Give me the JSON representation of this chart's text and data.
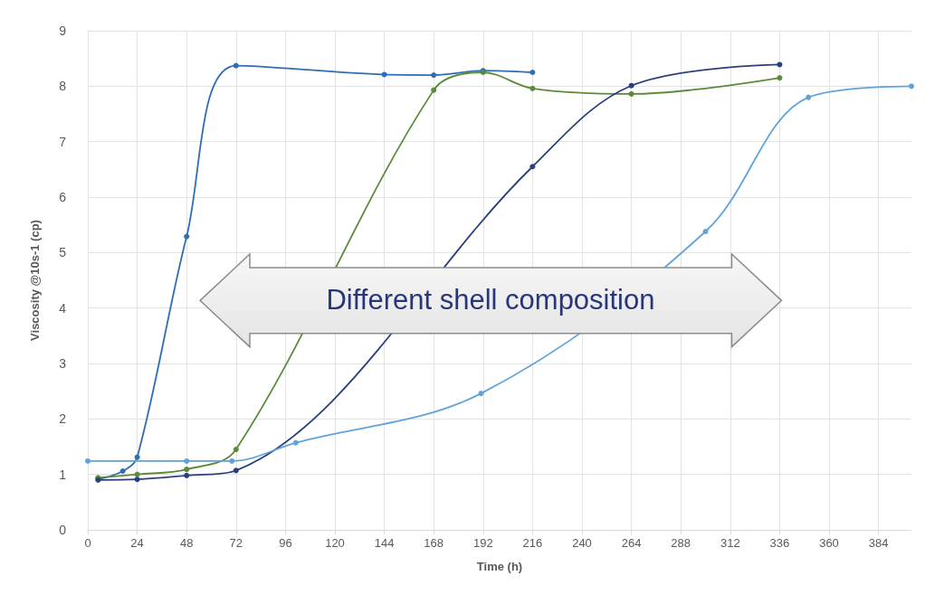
{
  "chart_data": {
    "type": "line",
    "xlabel": "Time (h)",
    "ylabel": "Viscosity @10s-1 (cp)",
    "annotations": [
      "Different shell composition"
    ],
    "xlim": [
      0,
      400
    ],
    "xticks": [
      0,
      24,
      48,
      72,
      96,
      120,
      144,
      168,
      192,
      216,
      240,
      264,
      288,
      312,
      336,
      360,
      384
    ],
    "ylim": [
      0,
      9
    ],
    "yticks": [
      0,
      1,
      2,
      3,
      4,
      5,
      6,
      7,
      8,
      9
    ],
    "grid": true,
    "marker": "circle",
    "line_style": "solid",
    "series": [
      {
        "color": "#2f6db5",
        "x": [
          5,
          17,
          24,
          48,
          72,
          144,
          168,
          192,
          216
        ],
        "values": [
          0.91,
          1.06,
          1.31,
          5.29,
          8.37,
          8.21,
          8.2,
          8.28,
          8.25
        ]
      },
      {
        "color": "#5b8a3a",
        "x": [
          5,
          24,
          48,
          72,
          168,
          192,
          216,
          264,
          336
        ],
        "values": [
          0.94,
          1.0,
          1.09,
          1.45,
          7.93,
          8.25,
          7.96,
          7.86,
          8.15
        ]
      },
      {
        "color": "#2b3f7f",
        "x": [
          5,
          24,
          48,
          72,
          216,
          264,
          336
        ],
        "values": [
          0.9,
          0.91,
          0.98,
          1.07,
          6.55,
          8.01,
          8.39
        ]
      },
      {
        "color": "#5ea3dc",
        "x": [
          0,
          48,
          70,
          101,
          191,
          300,
          350,
          400
        ],
        "values": [
          1.24,
          1.24,
          1.24,
          1.57,
          2.46,
          5.38,
          7.8,
          8.0
        ]
      }
    ]
  }
}
